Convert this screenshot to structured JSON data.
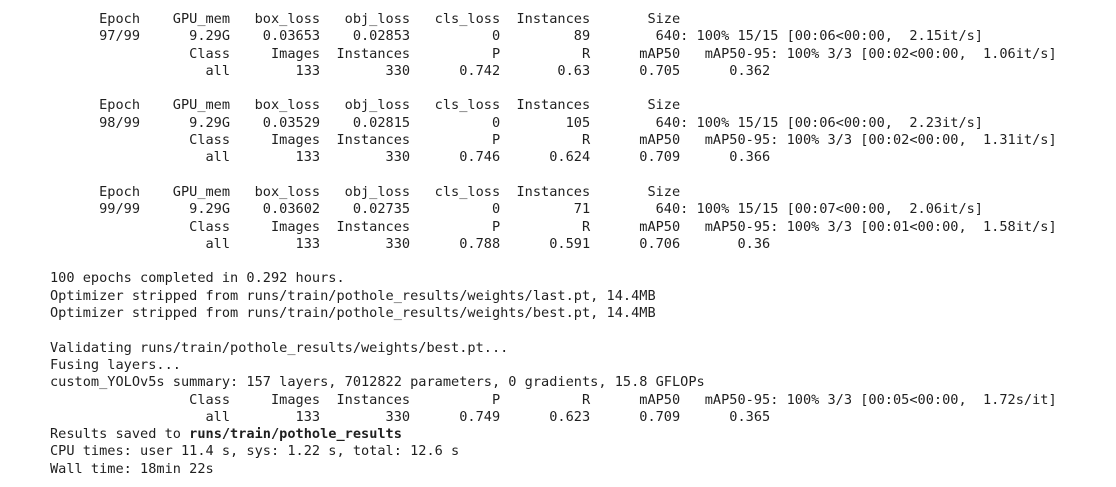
{
  "output": {
    "epochs": [
      {
        "header": "      Epoch    GPU_mem   box_loss   obj_loss   cls_loss  Instances       Size",
        "train": "      97/99      9.29G    0.03653    0.02853          0         89        640: 100% 15/15 [00:06<00:00,  2.15it/s]",
        "val_header": "                 Class     Images  Instances          P          R      mAP50   mAP50-95: 100% 3/3 [00:02<00:00,  1.06it/s]",
        "val_row": "                   all        133        330      0.742       0.63      0.705      0.362"
      },
      {
        "header": "      Epoch    GPU_mem   box_loss   obj_loss   cls_loss  Instances       Size",
        "train": "      98/99      9.29G    0.03529    0.02815          0        105        640: 100% 15/15 [00:06<00:00,  2.23it/s]",
        "val_header": "                 Class     Images  Instances          P          R      mAP50   mAP50-95: 100% 3/3 [00:02<00:00,  1.31it/s]",
        "val_row": "                   all        133        330      0.746      0.624      0.709      0.366"
      },
      {
        "header": "      Epoch    GPU_mem   box_loss   obj_loss   cls_loss  Instances       Size",
        "train": "      99/99      9.29G    0.03602    0.02735          0         71        640: 100% 15/15 [00:07<00:00,  2.06it/s]",
        "val_header": "                 Class     Images  Instances          P          R      mAP50   mAP50-95: 100% 3/3 [00:01<00:00,  1.58it/s]",
        "val_row": "                   all        133        330      0.788      0.591      0.706       0.36"
      }
    ],
    "summary": {
      "completed": "100 epochs completed in 0.292 hours.",
      "stripped_last": "Optimizer stripped from runs/train/pothole_results/weights/last.pt, 14.4MB",
      "stripped_best": "Optimizer stripped from runs/train/pothole_results/weights/best.pt, 14.4MB"
    },
    "validation": {
      "validating": "Validating runs/train/pothole_results/weights/best.pt...",
      "fusing": "Fusing layers... ",
      "model_summary": "custom_YOLOv5s summary: 157 layers, 7012822 parameters, 0 gradients, 15.8 GFLOPs",
      "val_header": "                 Class     Images  Instances          P          R      mAP50   mAP50-95: 100% 3/3 [00:05<00:00,  1.72s/it]",
      "val_row": "                   all        133        330      0.749      0.623      0.709      0.365"
    },
    "results": {
      "prefix": "Results saved to ",
      "path": "runs/train/pothole_results"
    },
    "timing": {
      "cpu": "CPU times: user 11.4 s, sys: 1.22 s, total: 12.6 s",
      "wall": "Wall time: 18min 22s"
    }
  }
}
